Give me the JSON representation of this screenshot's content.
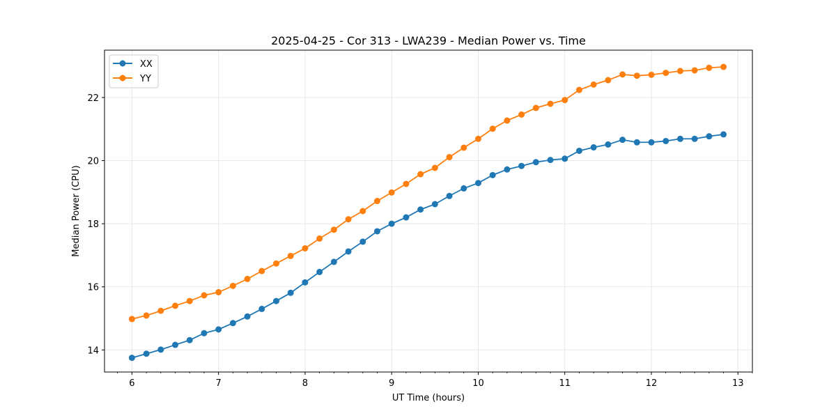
{
  "chart_data": {
    "type": "line",
    "title": "2025-04-25 - Cor 313 - LWA239 - Median Power vs. Time",
    "xlabel": "UT Time (hours)",
    "ylabel": "Median Power (CPU)",
    "xlim": [
      5.683,
      13.167
    ],
    "ylim": [
      13.3,
      23.5
    ],
    "xticks": [
      6,
      7,
      8,
      9,
      10,
      11,
      12,
      13
    ],
    "yticks": [
      14,
      16,
      18,
      20,
      22
    ],
    "grid": true,
    "legend_position": "top-left",
    "x": [
      6.0,
      6.1667,
      6.3333,
      6.5,
      6.6667,
      6.8333,
      7.0,
      7.1667,
      7.3333,
      7.5,
      7.6667,
      7.8333,
      8.0,
      8.1667,
      8.3333,
      8.5,
      8.6667,
      8.8333,
      9.0,
      9.1667,
      9.3333,
      9.5,
      9.6667,
      9.8333,
      10.0,
      10.1667,
      10.3333,
      10.5,
      10.6667,
      10.8333,
      11.0,
      11.1667,
      11.3333,
      11.5,
      11.6667,
      11.8333,
      12.0,
      12.1667,
      12.3333,
      12.5,
      12.6667,
      12.8333
    ],
    "series": [
      {
        "name": "XX",
        "color": "#1f77b4",
        "values": [
          13.75,
          13.88,
          14.01,
          14.16,
          14.31,
          14.53,
          14.65,
          14.85,
          15.06,
          15.3,
          15.55,
          15.81,
          16.14,
          16.47,
          16.79,
          17.12,
          17.43,
          17.76,
          18.0,
          18.2,
          18.45,
          18.62,
          18.88,
          19.12,
          19.29,
          19.54,
          19.72,
          19.83,
          19.95,
          20.02,
          20.06,
          20.31,
          20.42,
          20.51,
          20.66,
          20.58,
          20.58,
          20.62,
          20.69,
          20.69,
          20.77,
          20.83
        ]
      },
      {
        "name": "YY",
        "color": "#ff7f0e",
        "values": [
          14.98,
          15.09,
          15.24,
          15.4,
          15.55,
          15.73,
          15.83,
          16.03,
          16.25,
          16.5,
          16.74,
          16.98,
          17.22,
          17.53,
          17.81,
          18.14,
          18.4,
          18.72,
          18.99,
          19.26,
          19.57,
          19.77,
          20.11,
          20.41,
          20.69,
          21.01,
          21.27,
          21.46,
          21.67,
          21.8,
          21.92,
          22.24,
          22.41,
          22.55,
          22.73,
          22.69,
          22.72,
          22.78,
          22.84,
          22.86,
          22.94,
          22.97
        ]
      }
    ]
  }
}
